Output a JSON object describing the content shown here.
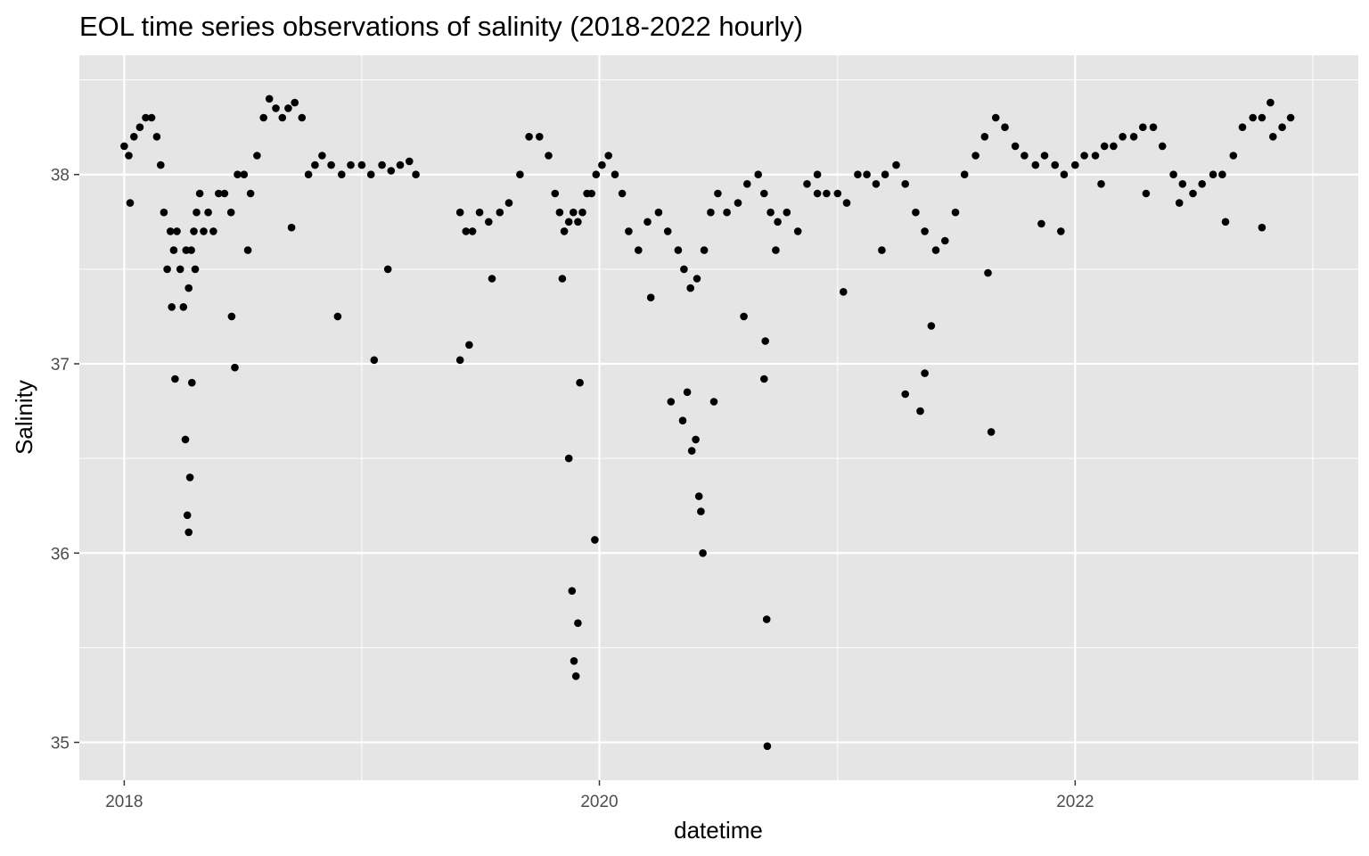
{
  "chart_data": {
    "type": "scatter",
    "title": "EOL time series observations of salinity (2018-2022 hourly)",
    "xlabel": "datetime",
    "ylabel": "Salinity",
    "x_ticks": [
      "2018",
      "2020",
      "2022"
    ],
    "y_ticks": [
      35,
      36,
      37,
      38
    ],
    "xlim": [
      "2017-10-24",
      "2023-03-12"
    ],
    "ylim": [
      34.8,
      38.63
    ],
    "grid": true,
    "background": "#e5e5e5",
    "point_color": "#000000",
    "series": [
      {
        "x": [
          "2018-01-01",
          "2018-01-08",
          "2018-01-16",
          "2018-01-25",
          "2018-02-03",
          "2018-02-12",
          "2018-02-20",
          "2018-02-26",
          "2018-03-03",
          "2018-03-08",
          "2018-03-13",
          "2018-03-18",
          "2018-03-23",
          "2018-03-28",
          "2018-04-02",
          "2018-04-06",
          "2018-04-10",
          "2018-04-14",
          "2018-04-18",
          "2018-04-22",
          "2018-04-27",
          "2018-05-03",
          "2018-05-10",
          "2018-05-18",
          "2018-05-26",
          "2018-06-04",
          "2018-06-14",
          "2018-06-24",
          "2018-07-04",
          "2018-07-14",
          "2018-07-24",
          "2018-08-03",
          "2018-08-12",
          "2018-08-22",
          "2018-09-01",
          "2018-09-10",
          "2018-09-20",
          "2018-10-01",
          "2018-10-11",
          "2018-10-21",
          "2018-11-01",
          "2018-11-15",
          "2018-12-01",
          "2018-12-15",
          "2019-01-01",
          "2019-01-15",
          "2019-02-01",
          "2019-02-15",
          "2019-03-01",
          "2019-03-15",
          "2019-03-25",
          "2019-06-01",
          "2019-06-10",
          "2019-06-20",
          "2019-07-01",
          "2019-07-15",
          "2019-08-01",
          "2019-08-15",
          "2019-09-01",
          "2019-09-15",
          "2019-10-01",
          "2019-10-15",
          "2019-10-25",
          "2019-11-01",
          "2019-11-08",
          "2019-11-15",
          "2019-11-22",
          "2019-11-29",
          "2019-12-06",
          "2019-12-13",
          "2019-12-20",
          "2019-12-27",
          "2020-01-05",
          "2020-01-15",
          "2020-01-25",
          "2020-02-05",
          "2020-02-15",
          "2020-03-01",
          "2020-03-15",
          "2020-04-01",
          "2020-04-15",
          "2020-05-01",
          "2020-05-10",
          "2020-05-20",
          "2020-05-30",
          "2020-06-10",
          "2020-06-20",
          "2020-07-01",
          "2020-07-15",
          "2020-08-01",
          "2020-08-15",
          "2020-09-01",
          "2020-09-10",
          "2020-09-20",
          "2020-10-01",
          "2020-10-15",
          "2020-11-01",
          "2020-11-15",
          "2020-12-01",
          "2020-12-15",
          "2021-01-01",
          "2021-01-15",
          "2021-02-01",
          "2021-02-15",
          "2021-03-01",
          "2021-03-15",
          "2021-04-01",
          "2021-04-15",
          "2021-05-01",
          "2021-05-15",
          "2021-06-01",
          "2021-06-15",
          "2021-07-01",
          "2021-07-15",
          "2021-08-01",
          "2021-08-15",
          "2021-09-01",
          "2021-09-15",
          "2021-10-01",
          "2021-10-15",
          "2021-11-01",
          "2021-11-15",
          "2021-12-01",
          "2021-12-15",
          "2022-01-01",
          "2022-01-15",
          "2022-02-01",
          "2022-02-15",
          "2022-03-01",
          "2022-03-15",
          "2022-04-01",
          "2022-04-15",
          "2022-05-01",
          "2022-05-15",
          "2022-06-01",
          "2022-06-15",
          "2022-07-01",
          "2022-07-15",
          "2022-08-01",
          "2022-08-15",
          "2022-09-01",
          "2022-09-15",
          "2022-10-01",
          "2022-10-15",
          "2022-11-01",
          "2022-11-15",
          "2022-11-28",
          "2018-01-10",
          "2018-03-15",
          "2018-03-20",
          "2018-04-05",
          "2018-04-08",
          "2018-04-10",
          "2018-04-12",
          "2018-04-15",
          "2018-04-20",
          "2018-06-15",
          "2018-06-20",
          "2018-07-10",
          "2018-09-15",
          "2018-11-25",
          "2019-01-20",
          "2019-02-10",
          "2019-06-01",
          "2019-06-15",
          "2019-07-20",
          "2019-11-05",
          "2019-11-15",
          "2019-11-20",
          "2019-11-23",
          "2019-11-26",
          "2019-11-29",
          "2019-12-02",
          "2019-12-25",
          "2020-03-20",
          "2020-04-20",
          "2020-05-08",
          "2020-05-15",
          "2020-05-22",
          "2020-05-28",
          "2020-06-02",
          "2020-06-05",
          "2020-06-08",
          "2020-06-25",
          "2020-08-10",
          "2020-09-10",
          "2020-09-12",
          "2020-09-14",
          "2020-09-15",
          "2020-09-28",
          "2020-12-01",
          "2021-01-10",
          "2021-03-10",
          "2021-04-15",
          "2021-05-08",
          "2021-05-15",
          "2021-05-25",
          "2021-08-20",
          "2021-08-25",
          "2021-11-10",
          "2021-12-10",
          "2022-02-10",
          "2022-04-20",
          "2022-06-10",
          "2022-08-20",
          "2022-10-15",
          "2022-10-28"
        ],
        "y": [
          38.15,
          38.1,
          38.2,
          38.25,
          38.3,
          38.3,
          38.2,
          38.05,
          37.8,
          37.5,
          37.7,
          37.6,
          37.7,
          37.5,
          37.3,
          37.6,
          37.4,
          37.6,
          37.7,
          37.8,
          37.9,
          37.7,
          37.8,
          37.7,
          37.9,
          37.9,
          37.8,
          38.0,
          38.0,
          37.9,
          38.1,
          38.3,
          38.4,
          38.35,
          38.3,
          38.35,
          38.38,
          38.3,
          38.0,
          38.05,
          38.1,
          38.05,
          38.0,
          38.05,
          38.05,
          38.0,
          38.05,
          38.02,
          38.05,
          38.07,
          38.0,
          37.8,
          37.7,
          37.7,
          37.8,
          37.75,
          37.8,
          37.85,
          38.0,
          38.2,
          38.2,
          38.1,
          37.9,
          37.8,
          37.7,
          37.75,
          37.8,
          37.75,
          37.8,
          37.9,
          37.9,
          38.0,
          38.05,
          38.1,
          38.0,
          37.9,
          37.7,
          37.6,
          37.75,
          37.8,
          37.7,
          37.6,
          37.5,
          37.4,
          37.45,
          37.6,
          37.8,
          37.9,
          37.8,
          37.85,
          37.95,
          38.0,
          37.9,
          37.8,
          37.75,
          37.8,
          37.7,
          37.95,
          38.0,
          37.9,
          37.9,
          37.85,
          38.0,
          38.0,
          37.95,
          38.0,
          38.05,
          37.95,
          37.8,
          37.7,
          37.6,
          37.65,
          37.8,
          38.0,
          38.1,
          38.2,
          38.3,
          38.25,
          38.15,
          38.1,
          38.05,
          38.1,
          38.05,
          38.0,
          38.05,
          38.1,
          38.1,
          38.15,
          38.15,
          38.2,
          38.2,
          38.25,
          38.25,
          38.15,
          38.0,
          37.95,
          37.9,
          37.95,
          38.0,
          38.0,
          38.1,
          38.25,
          38.3,
          38.3,
          38.2,
          38.25,
          38.3,
          37.85,
          37.3,
          36.92,
          36.6,
          36.2,
          36.11,
          36.4,
          36.9,
          37.5,
          37.25,
          36.98,
          37.6,
          37.72,
          37.25,
          37.02,
          37.5,
          37.02,
          37.1,
          37.45,
          37.45,
          36.5,
          35.8,
          35.43,
          35.35,
          35.63,
          36.9,
          36.07,
          37.35,
          36.8,
          36.7,
          36.85,
          36.54,
          36.6,
          36.3,
          36.22,
          36.0,
          36.8,
          37.25,
          36.92,
          37.12,
          35.65,
          34.98,
          37.6,
          37.9,
          37.38,
          37.6,
          36.84,
          36.75,
          36.95,
          37.2,
          37.48,
          36.64,
          37.74,
          37.7,
          37.95,
          37.9,
          37.85,
          37.75,
          37.72,
          38.38
        ]
      }
    ]
  }
}
